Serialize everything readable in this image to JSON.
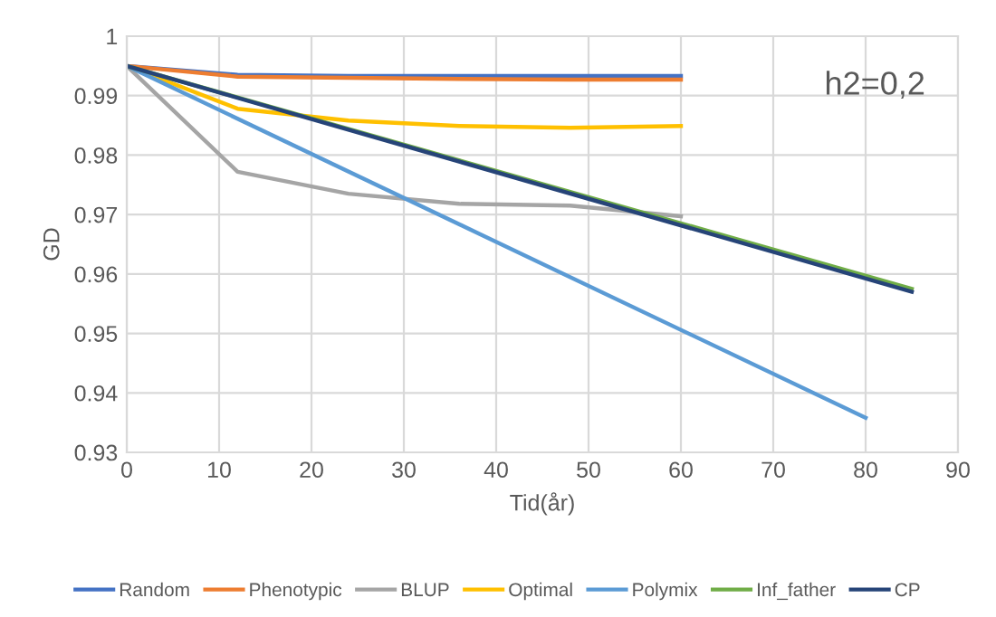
{
  "chart_data": {
    "type": "line",
    "xlabel": "Tid(år)",
    "ylabel": "GD",
    "annotations": [
      "h2=0,2"
    ],
    "xlim": [
      0,
      90
    ],
    "xticks": [
      0,
      10,
      20,
      30,
      40,
      50,
      60,
      70,
      80,
      90
    ],
    "ylim": [
      0.93,
      1
    ],
    "yticks": [
      0.93,
      0.94,
      0.95,
      0.96,
      0.97,
      0.98,
      0.99,
      1
    ],
    "grid": true,
    "legend": "bottom",
    "marker": "none",
    "line_style": "solid",
    "series": [
      {
        "name": "Random",
        "color": "#4472c4",
        "x": [
          0,
          12,
          24,
          36,
          48,
          60
        ],
        "values": [
          0.995,
          0.9935,
          0.9933,
          0.9933,
          0.9933,
          0.9933
        ]
      },
      {
        "name": "Phenotypic",
        "color": "#ed7d31",
        "x": [
          0,
          12,
          24,
          36,
          48,
          60
        ],
        "values": [
          0.995,
          0.9932,
          0.993,
          0.9928,
          0.9927,
          0.9927
        ]
      },
      {
        "name": "BLUP",
        "color": "#a5a5a5",
        "x": [
          0,
          12,
          24,
          36,
          48,
          60
        ],
        "values": [
          0.995,
          0.9772,
          0.9735,
          0.9718,
          0.9715,
          0.9697
        ]
      },
      {
        "name": "Optimal",
        "color": "#ffc000",
        "x": [
          0,
          12,
          24,
          36,
          48,
          60
        ],
        "values": [
          0.995,
          0.9878,
          0.9858,
          0.9849,
          0.9846,
          0.9849
        ]
      },
      {
        "name": "Polymix",
        "color": "#5b9bd5",
        "x": [
          0,
          80
        ],
        "values": [
          0.995,
          0.9358
        ]
      },
      {
        "name": "Inf_father",
        "color": "#70ad47",
        "x": [
          0,
          85
        ],
        "values": [
          0.995,
          0.9575
        ]
      },
      {
        "name": "CP",
        "color": "#264478",
        "x": [
          0,
          85
        ],
        "values": [
          0.995,
          0.957
        ]
      }
    ]
  }
}
